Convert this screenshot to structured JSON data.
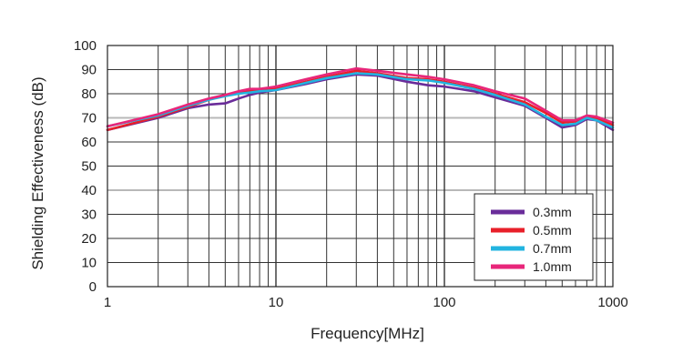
{
  "chart_data": {
    "type": "line",
    "xlabel": "Frequency[MHz]",
    "ylabel": "Shielding Effectiveness (dB)",
    "xscale": "log",
    "xlim": [
      1,
      1000
    ],
    "ylim": [
      0,
      100
    ],
    "xticks": [
      1,
      10,
      100,
      1000
    ],
    "xtick_labels": [
      "1",
      "10",
      "100",
      "1000"
    ],
    "yticks": [
      0,
      10,
      20,
      30,
      40,
      50,
      60,
      70,
      80,
      90,
      100
    ],
    "ytick_labels": [
      "0",
      "10",
      "20",
      "30",
      "40",
      "50",
      "60",
      "70",
      "80",
      "90",
      "100"
    ],
    "grid": true,
    "legend_position": "bottom-right",
    "series": [
      {
        "name": "0.3mm",
        "color": "#6a2c9a",
        "x": [
          1,
          2,
          3,
          4,
          5,
          6,
          7,
          8,
          10,
          15,
          20,
          30,
          40,
          60,
          80,
          100,
          150,
          200,
          300,
          400,
          500,
          600,
          700,
          800,
          1000
        ],
        "y": [
          65,
          70,
          74,
          75.5,
          76,
          78,
          79.5,
          80.5,
          81.5,
          84,
          86,
          88,
          87.5,
          85,
          83.5,
          83,
          81,
          78.5,
          75,
          70,
          66,
          67,
          69.5,
          69,
          65
        ]
      },
      {
        "name": "0.5mm",
        "color": "#e8202a",
        "x": [
          1,
          2,
          3,
          4,
          5,
          6,
          7,
          8,
          10,
          15,
          20,
          30,
          40,
          60,
          80,
          100,
          150,
          200,
          300,
          400,
          500,
          600,
          700,
          800,
          1000
        ],
        "y": [
          65,
          70.5,
          74.5,
          77.5,
          79.5,
          80.5,
          81,
          81.5,
          82,
          85,
          87,
          89.5,
          88.5,
          86.5,
          86,
          85,
          82.5,
          80,
          76.5,
          72,
          68,
          68.5,
          70.5,
          70,
          67
        ]
      },
      {
        "name": "0.7mm",
        "color": "#22b4e0",
        "x": [
          1,
          2,
          3,
          4,
          5,
          6,
          7,
          8,
          10,
          15,
          20,
          30,
          40,
          60,
          80,
          100,
          150,
          200,
          300,
          400,
          500,
          600,
          700,
          800,
          1000
        ],
        "y": [
          66.5,
          71,
          75,
          77.5,
          79,
          80,
          80.5,
          81,
          81.5,
          84.5,
          86.5,
          88.5,
          88,
          86,
          85.5,
          84.5,
          82,
          79.5,
          75.5,
          70.5,
          67,
          67.5,
          70,
          69,
          66
        ]
      },
      {
        "name": "1.0mm",
        "color": "#e8267a",
        "x": [
          1,
          2,
          3,
          4,
          5,
          6,
          7,
          8,
          10,
          15,
          20,
          30,
          40,
          60,
          80,
          100,
          150,
          200,
          300,
          400,
          500,
          600,
          700,
          800,
          1000
        ],
        "y": [
          66.5,
          71.5,
          75.5,
          78,
          79.5,
          81,
          82,
          82,
          83,
          86,
          88,
          90.5,
          89.5,
          88,
          87,
          86,
          83.5,
          81,
          78,
          73,
          69,
          69,
          71,
          70.5,
          68
        ]
      }
    ]
  }
}
